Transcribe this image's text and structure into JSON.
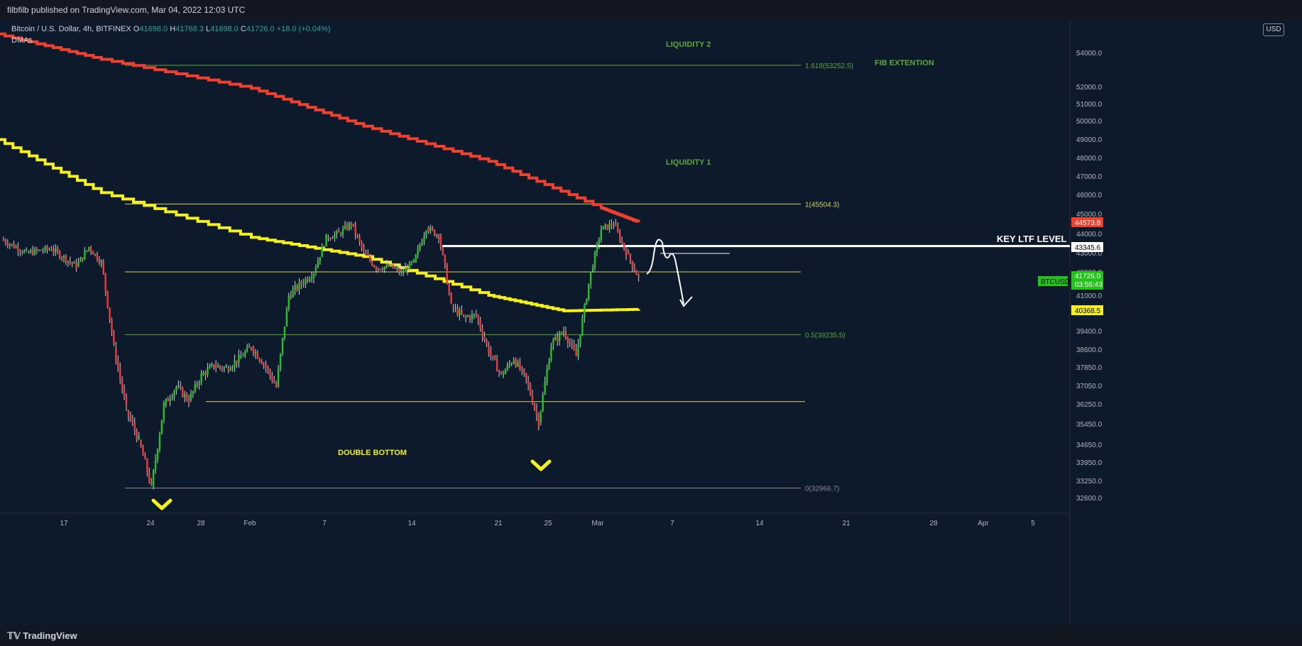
{
  "header": {
    "published": "filbfilb published on TradingView.com, Mar 04, 2022 12:03 UTC"
  },
  "legend": {
    "symbol": "Bitcoin / U.S. Dollar, 4h, BITFINEX",
    "o_label": "O",
    "o": "41698.0",
    "h_label": "H",
    "h": "41768.3",
    "l_label": "L",
    "l": "41698.0",
    "c_label": "C",
    "c": "41726.0",
    "change": "+18.0 (+0.04%)",
    "indicator": "DMAs"
  },
  "footer": {
    "brand": "TradingView"
  },
  "axis": {
    "currency": "USD"
  },
  "colors": {
    "up": "#26c22a",
    "down": "#ef3b3b",
    "ma200": "#f0412e",
    "ma50": "#f5f01e",
    "fib": "#5aa83a",
    "level": "#d8d060",
    "background": "#0d1a2b"
  },
  "chart_data": {
    "type": "line",
    "title": "Bitcoin / U.S. Dollar, 4h, BITFINEX",
    "xlabel": "",
    "ylabel": "",
    "ylim": [
      31800,
      55400
    ],
    "x_ticks": [
      "17",
      "24",
      "28",
      "Feb",
      "7",
      "14",
      "21",
      "25",
      "Mar",
      "7",
      "14",
      "21",
      "28",
      "Apr",
      "5"
    ],
    "y_ticks": [
      54000.0,
      52000.0,
      51000.0,
      50000.0,
      49000.0,
      48000.0,
      47000.0,
      46000.0,
      45000.0,
      44000.0,
      43000.0,
      42000.0,
      41000.0,
      39400.0,
      38600.0,
      37850.0,
      37050.0,
      36250.0,
      35450.0,
      34650.0,
      33950.0,
      33250.0,
      32600.0
    ],
    "price_series": {
      "name": "BTCUSD",
      "points": [
        [
          "Jan 12",
          43700
        ],
        [
          "Jan 14",
          43000
        ],
        [
          "Jan 16",
          43200
        ],
        [
          "Jan 18",
          42300
        ],
        [
          "Jan 19",
          43300
        ],
        [
          "Jan 20",
          42500
        ],
        [
          "Jan 21",
          38700
        ],
        [
          "Jan 22",
          36000
        ],
        [
          "Jan 23",
          34800
        ],
        [
          "Jan 24",
          33000
        ],
        [
          "Jan 25",
          36200
        ],
        [
          "Jan 26",
          37000
        ],
        [
          "Jan 27",
          36400
        ],
        [
          "Jan 28",
          37500
        ],
        [
          "Jan 29",
          37900
        ],
        [
          "Jan 30",
          37800
        ],
        [
          "Jan 31",
          38200
        ],
        [
          "Feb 1",
          38700
        ],
        [
          "Feb 2",
          38000
        ],
        [
          "Feb 3",
          37000
        ],
        [
          "Feb 4",
          41000
        ],
        [
          "Feb 5",
          41500
        ],
        [
          "Feb 6",
          42000
        ],
        [
          "Feb 7",
          43800
        ],
        [
          "Feb 8",
          44000
        ],
        [
          "Feb 9",
          44500
        ],
        [
          "Feb 10",
          43000
        ],
        [
          "Feb 11",
          42200
        ],
        [
          "Feb 12",
          42300
        ],
        [
          "Feb 13",
          42000
        ],
        [
          "Feb 14",
          42500
        ],
        [
          "Feb 15",
          44300
        ],
        [
          "Feb 16",
          43900
        ],
        [
          "Feb 17",
          40500
        ],
        [
          "Feb 18",
          40000
        ],
        [
          "Feb 19",
          40100
        ],
        [
          "Feb 20",
          38500
        ],
        [
          "Feb 21",
          37500
        ],
        [
          "Feb 22",
          38200
        ],
        [
          "Feb 23",
          37300
        ],
        [
          "Feb 24",
          35500
        ],
        [
          "Feb 25",
          38800
        ],
        [
          "Feb 26",
          39400
        ],
        [
          "Feb 27",
          38300
        ],
        [
          "Feb 28",
          41500
        ],
        [
          "Mar 1",
          44200
        ],
        [
          "Mar 2",
          44500
        ],
        [
          "Mar 3",
          43000
        ],
        [
          "Mar 4",
          41726
        ]
      ]
    },
    "moving_averages": [
      {
        "name": "",
        "last": 44573.8,
        "points": [
          [
            "Jan 11",
            55200
          ],
          [
            "Jan 20",
            53600
          ],
          [
            "Feb 1",
            51900
          ],
          [
            "Feb 10",
            49700
          ],
          [
            "Feb 20",
            47800
          ],
          [
            "Mar 1",
            45300
          ],
          [
            "Mar 4",
            44573.8
          ]
        ]
      },
      {
        "name": "",
        "last": 40368.5,
        "points": [
          [
            "Jan 11",
            49200
          ],
          [
            "Jan 20",
            46100
          ],
          [
            "Feb 1",
            43800
          ],
          [
            "Feb 10",
            42800
          ],
          [
            "Feb 20",
            41000
          ],
          [
            "Feb 26",
            40300
          ],
          [
            "Mar 4",
            40368.5
          ]
        ]
      }
    ],
    "fib_levels": [
      {
        "ratio": "1.618",
        "price": 53252.5,
        "label": "1.618(53252.5)"
      },
      {
        "ratio": "1",
        "price": 45504.3,
        "label": "1(45504.3)"
      },
      {
        "ratio": "0.5",
        "price": 39235.5,
        "label": "0.5(39235.5)"
      },
      {
        "ratio": "0",
        "price": 32966.7,
        "label": "0(32966.7)"
      }
    ],
    "horizontal_levels": [
      42000,
      36350,
      43345.6
    ],
    "price_labels": [
      {
        "value": "44573.8",
        "color": "#f0412e"
      },
      {
        "value": "43345.6",
        "color": "#ffffff"
      },
      {
        "value": "41726.0",
        "sub": "03:56:43",
        "color": "#22c41a",
        "symbol": "BTCUSD"
      },
      {
        "value": "40368.5",
        "color": "#f5f01e"
      }
    ],
    "annotations": [
      "LIQUIDITY 2",
      "FIB EXTENTION",
      "LIQUIDITY 1",
      "KEY LTF LEVEL",
      "DOUBLE BOTTOM"
    ]
  }
}
